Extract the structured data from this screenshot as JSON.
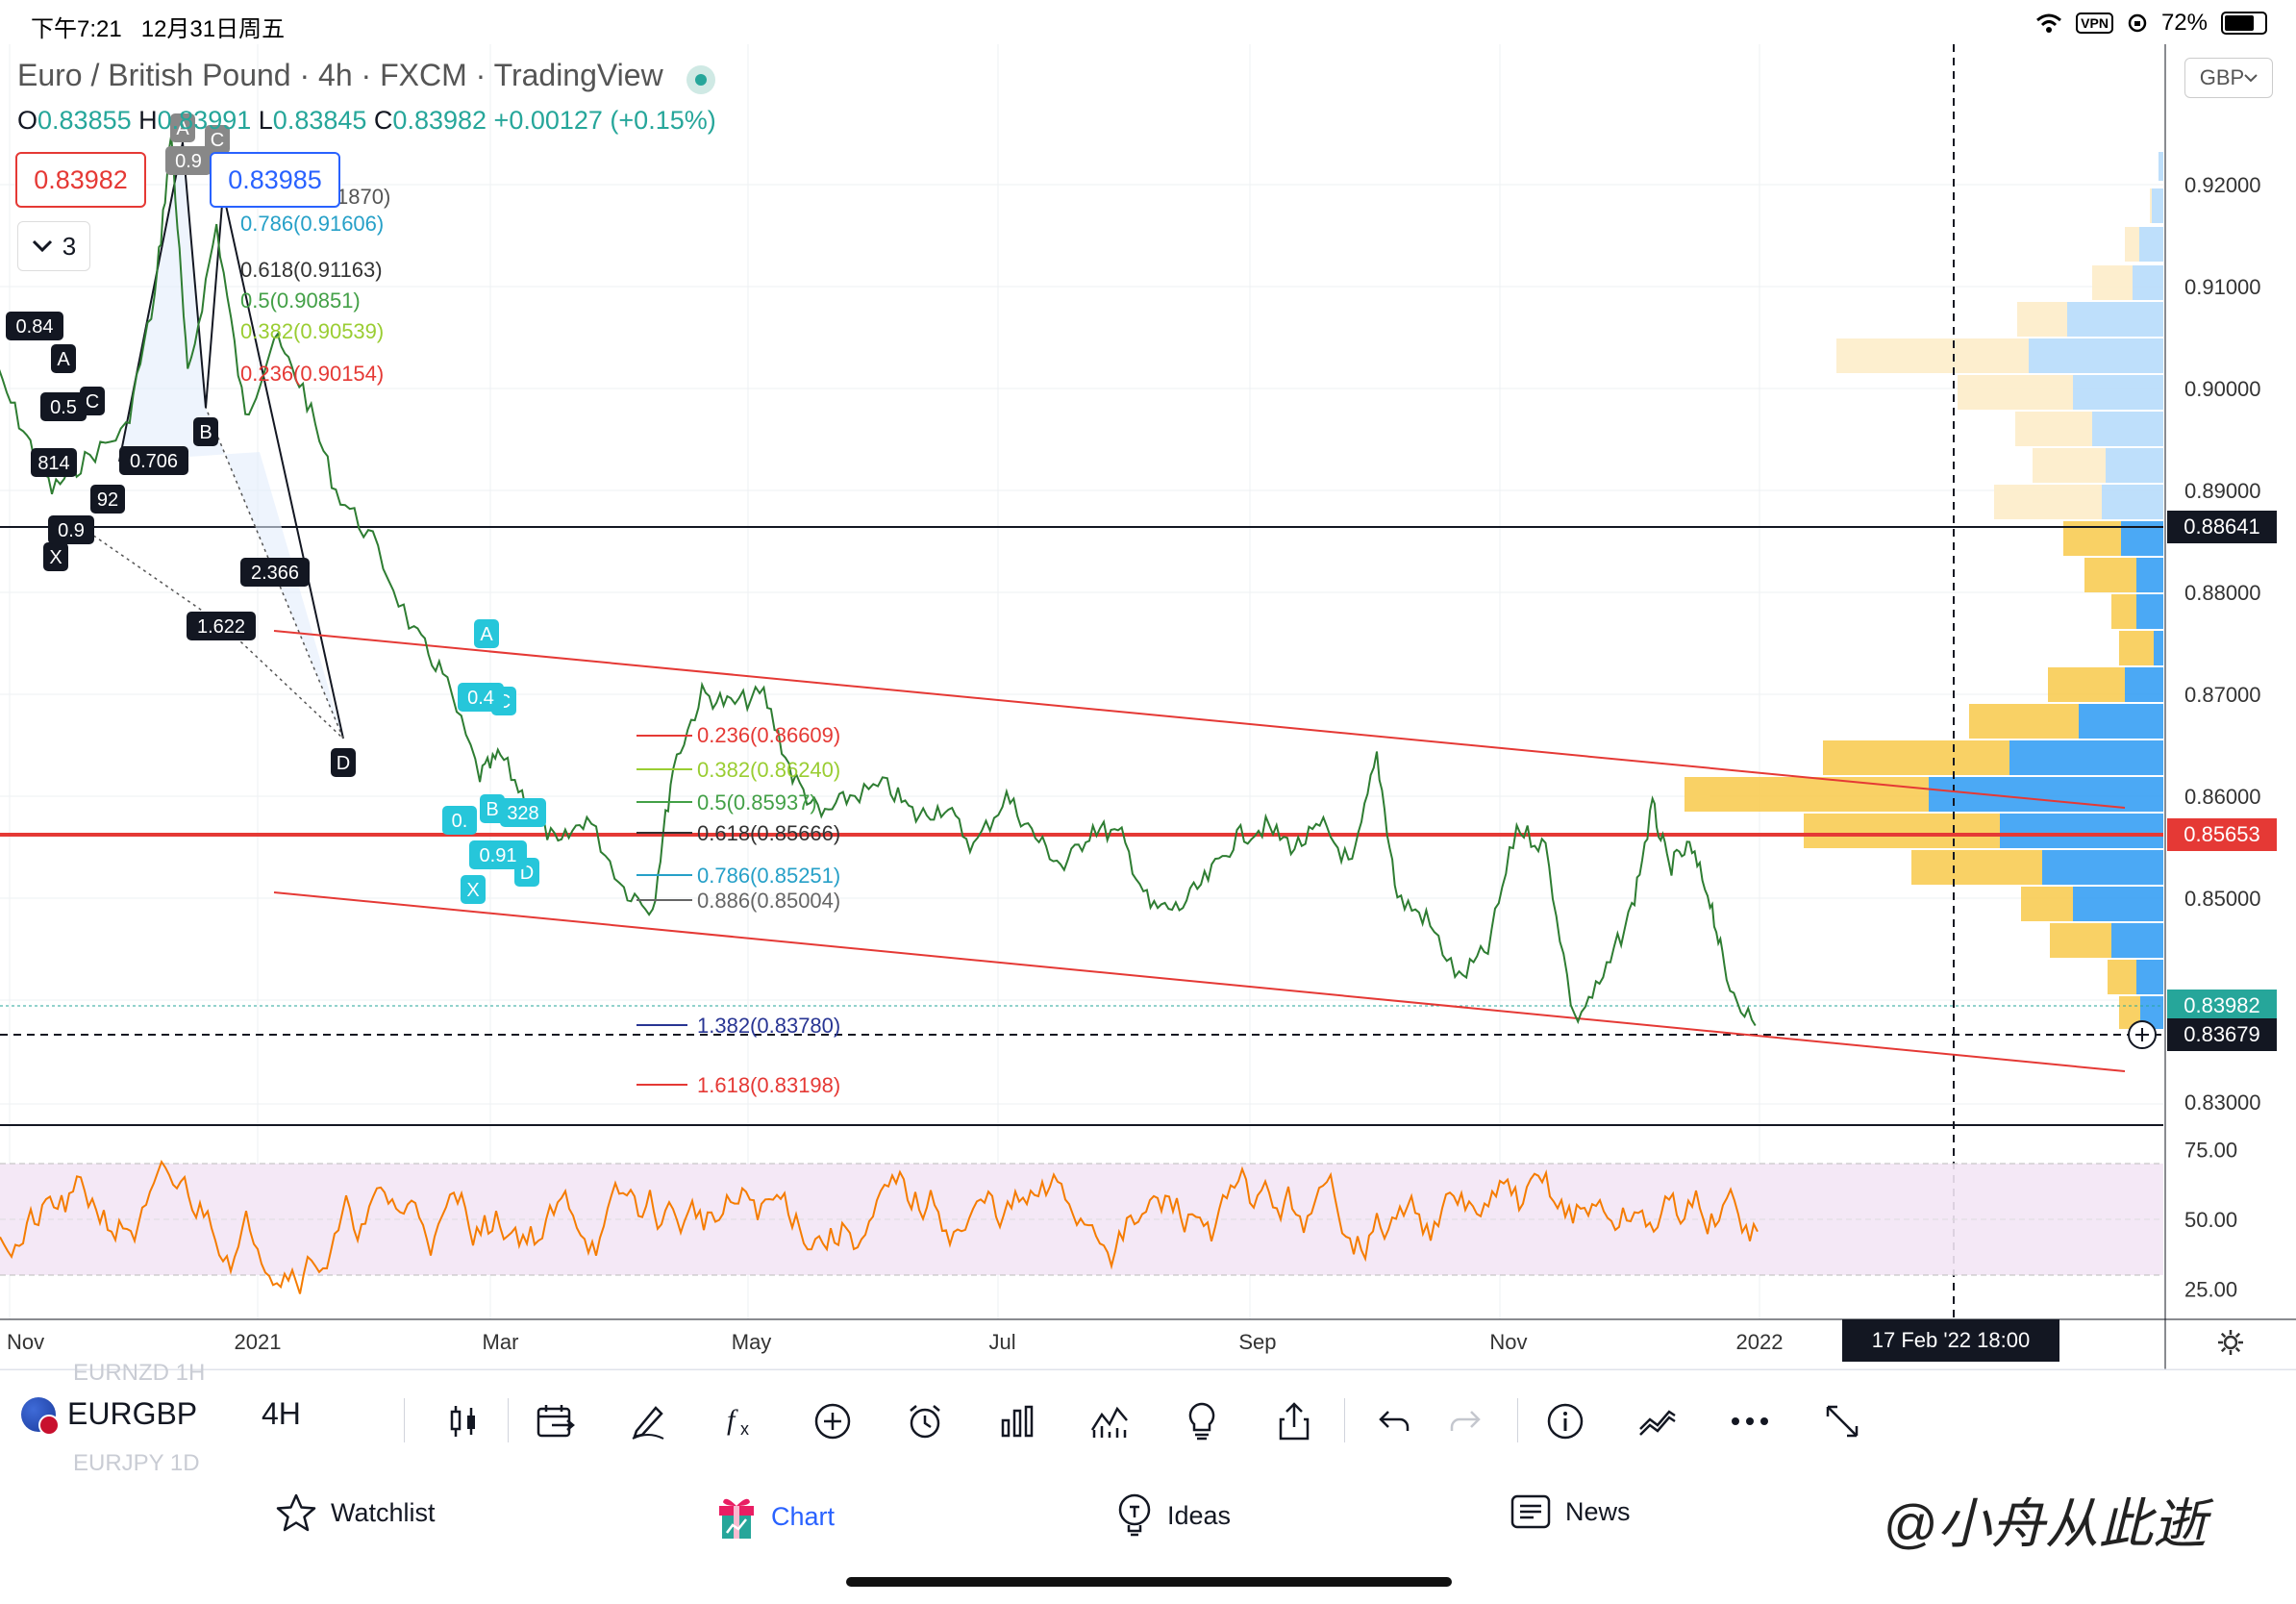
{
  "status_bar": {
    "time": "下午7:21",
    "date": "12月31日周五",
    "vpn": "VPN",
    "battery": "72%"
  },
  "header": {
    "title": "Euro / British Pound · 4h · FXCM · TradingView",
    "ohlc": {
      "o_label": "O",
      "o": "0.83855",
      "h_label": "H",
      "h": "0.83991",
      "l_label": "L",
      "l": "0.83845",
      "c_label": "C",
      "c": "0.83982",
      "change": "+0.00127 (+0.15%)"
    },
    "sell_price": "0.83982",
    "buy_price": "0.83985",
    "indicators_count": "3",
    "currency": "GBP"
  },
  "chart_data": {
    "type": "line",
    "title": "Euro / British Pound · 4h · FXCM · TradingView",
    "symbol": "EURGBP",
    "interval": "4h",
    "x_tick_labels": [
      "Nov",
      "2021",
      "Mar",
      "May",
      "Jul",
      "Sep",
      "Nov",
      "2022"
    ],
    "price_axis_labels": [
      "0.92000",
      "0.91000",
      "0.90000",
      "0.89000",
      "0.88000",
      "0.87000",
      "0.86000",
      "0.85000",
      "0.83000"
    ],
    "price_tags": [
      {
        "value": "0.88641",
        "color": "#131722"
      },
      {
        "value": "0.85653",
        "color": "#e53935"
      },
      {
        "value": "0.83982",
        "color": "#26a69a"
      },
      {
        "value": "0.83679",
        "color": "#131722"
      }
    ],
    "ylim": [
      0.825,
      0.928
    ],
    "price_path": [
      [
        "2020-10-28",
        0.903
      ],
      [
        "2020-11-05",
        0.896
      ],
      [
        "2020-11-12",
        0.89
      ],
      [
        "2020-11-20",
        0.893
      ],
      [
        "2020-11-30",
        0.896
      ],
      [
        "2020-12-07",
        0.909
      ],
      [
        "2020-12-11",
        0.925
      ],
      [
        "2020-12-15",
        0.901
      ],
      [
        "2020-12-22",
        0.916
      ],
      [
        "2020-12-29",
        0.897
      ],
      [
        "2021-01-05",
        0.905
      ],
      [
        "2021-01-12",
        0.9
      ],
      [
        "2021-01-20",
        0.89
      ],
      [
        "2021-01-29",
        0.885
      ],
      [
        "2021-02-08",
        0.876
      ],
      [
        "2021-02-15",
        0.872
      ],
      [
        "2021-02-24",
        0.862
      ],
      [
        "2021-03-01",
        0.864
      ],
      [
        "2021-03-08",
        0.859
      ],
      [
        "2021-03-15",
        0.855
      ],
      [
        "2021-03-22",
        0.858
      ],
      [
        "2021-03-31",
        0.851
      ],
      [
        "2021-04-07",
        0.849
      ],
      [
        "2021-04-12",
        0.863
      ],
      [
        "2021-04-19",
        0.87
      ],
      [
        "2021-04-26",
        0.869
      ],
      [
        "2021-05-04",
        0.87
      ],
      [
        "2021-05-11",
        0.862
      ],
      [
        "2021-05-18",
        0.858
      ],
      [
        "2021-05-25",
        0.86
      ],
      [
        "2021-06-03",
        0.861
      ],
      [
        "2021-06-10",
        0.858
      ],
      [
        "2021-06-17",
        0.859
      ],
      [
        "2021-06-24",
        0.855
      ],
      [
        "2021-07-02",
        0.86
      ],
      [
        "2021-07-09",
        0.856
      ],
      [
        "2021-07-16",
        0.853
      ],
      [
        "2021-07-23",
        0.857
      ],
      [
        "2021-07-30",
        0.856
      ],
      [
        "2021-08-06",
        0.849
      ],
      [
        "2021-08-13",
        0.849
      ],
      [
        "2021-08-20",
        0.852
      ],
      [
        "2021-08-27",
        0.856
      ],
      [
        "2021-09-03",
        0.857
      ],
      [
        "2021-09-10",
        0.855
      ],
      [
        "2021-09-17",
        0.857
      ],
      [
        "2021-09-24",
        0.853
      ],
      [
        "2021-09-30",
        0.864
      ],
      [
        "2021-10-05",
        0.85
      ],
      [
        "2021-10-12",
        0.848
      ],
      [
        "2021-10-20",
        0.842
      ],
      [
        "2021-10-27",
        0.845
      ],
      [
        "2021-11-03",
        0.857
      ],
      [
        "2021-11-10",
        0.855
      ],
      [
        "2021-11-17",
        0.838
      ],
      [
        "2021-11-24",
        0.842
      ],
      [
        "2021-12-01",
        0.849
      ],
      [
        "2021-12-06",
        0.859
      ],
      [
        "2021-12-10",
        0.853
      ],
      [
        "2021-12-15",
        0.855
      ],
      [
        "2021-12-20",
        0.85
      ],
      [
        "2021-12-24",
        0.842
      ],
      [
        "2021-12-31",
        0.8375
      ]
    ],
    "channel": {
      "upper": [
        [
          "2021-01-01",
          0.8665
        ],
        [
          "2022-02-15",
          0.8562
        ]
      ],
      "lower": [
        [
          "2021-01-01",
          0.8505
        ],
        [
          "2022-02-15",
          0.8335
        ]
      ]
    },
    "fib_upper_labels": [
      "0.786(0.91606)",
      "0.618(0.91163)",
      "0.5(0.90851)",
      "0.382(0.90539)",
      "0.236(0.90154)",
      "1870)"
    ],
    "fib_lower_labels": [
      {
        "text": "0.236(0.86609)",
        "color": "#e53935"
      },
      {
        "text": "0.382(0.86240)",
        "color": "#9acd32"
      },
      {
        "text": "0.5(0.85937)",
        "color": "#43a047"
      },
      {
        "text": "0.618(0.85666)",
        "color": "#333333"
      },
      {
        "text": "0.786(0.85251)",
        "color": "#26a0c8"
      },
      {
        "text": "0.886(0.85004)",
        "color": "#666666"
      },
      {
        "text": "1.382(0.83780)",
        "color": "#283593"
      },
      {
        "text": "1.618(0.83198)",
        "color": "#e53935"
      }
    ],
    "harmonic_black_labels": [
      "0.706",
      "2.366",
      "1.622",
      "B",
      "D",
      "A",
      "C",
      "X",
      "0.84",
      "0.5",
      "0.9",
      "814",
      "92"
    ],
    "harmonic_gray_labels": [
      "A",
      "C",
      "0.9"
    ],
    "harmonic_cyan_labels": [
      "A",
      "C",
      "B",
      "D",
      "X",
      "0.4",
      "0.91",
      "328",
      "0."
    ],
    "rsi": {
      "levels": [
        "75.00",
        "50.00",
        "25.00"
      ],
      "upper": 70,
      "lower": 30
    },
    "volume_profile_visible": true
  },
  "crosshair_time": "17 Feb '22  18:00",
  "toolbar": {
    "symbol": "EURGBP",
    "interval": "4H",
    "ghost_above": "EURNZD     1H",
    "ghost_below": "EURJPY     1D",
    "icons": [
      "candles-icon",
      "replay-calendar-icon",
      "draw-pen-icon",
      "indicators-fx-icon",
      "add-circle-icon",
      "alarm-icon",
      "bar-chart-icon",
      "compare-icon",
      "idea-bulb-icon",
      "share-icon",
      "undo-icon",
      "redo-icon",
      "info-icon",
      "strategy-icon",
      "more-icon",
      "fullscreen-icon"
    ]
  },
  "bottom_nav": {
    "watchlist": "Watchlist",
    "chart": "Chart",
    "ideas": "Ideas",
    "news": "News",
    "watermark": "@小舟从此逝"
  }
}
